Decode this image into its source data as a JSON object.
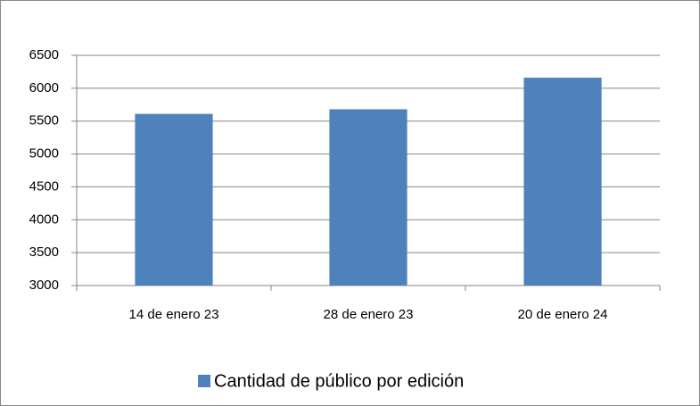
{
  "chart_data": {
    "type": "bar",
    "categories": [
      "14 de enero 23",
      "28 de enero 23",
      "20 de enero 24"
    ],
    "series": [
      {
        "name": "Cantidad de público por edición",
        "color": "#4f81bd",
        "values": [
          5610,
          5680,
          6160
        ]
      }
    ],
    "ylim": [
      3000,
      6500
    ],
    "yticks": [
      3000,
      3500,
      4000,
      4500,
      5000,
      5500,
      6000,
      6500
    ],
    "grid": true,
    "legend": "bottom"
  }
}
